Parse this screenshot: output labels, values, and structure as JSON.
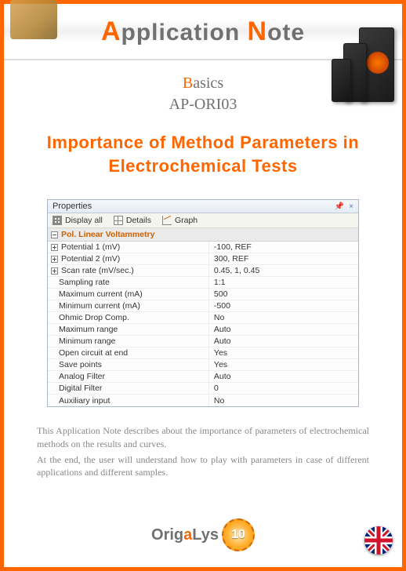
{
  "header": {
    "title_first_letter_1": "A",
    "title_rest_1": "pplication ",
    "title_first_letter_2": "N",
    "title_rest_2": "ote"
  },
  "subhead": {
    "line1_first": "B",
    "line1_rest": "asics",
    "line2": "AP-ORI03"
  },
  "main_title": "Importance of Method Parameters in Electrochemical Tests",
  "properties_panel": {
    "title": "Properties",
    "pin_icon": "📌",
    "close_icon": "×",
    "toolbar": {
      "display_all": "Display all",
      "details": "Details",
      "graph": "Graph"
    },
    "section_title": "Pol. Linear Voltammetry",
    "rows": [
      {
        "label": "Potential 1 (mV)",
        "value": "-100, REF",
        "expandable": true
      },
      {
        "label": "Potential 2 (mV)",
        "value": "300, REF",
        "expandable": true
      },
      {
        "label": "Scan rate (mV/sec.)",
        "value": "0.45, 1, 0.45",
        "expandable": true
      },
      {
        "label": "Sampling rate",
        "value": "1:1",
        "expandable": false
      },
      {
        "label": "Maximum current (mA)",
        "value": "500",
        "expandable": false
      },
      {
        "label": "Minimum current (mA)",
        "value": "-500",
        "expandable": false
      },
      {
        "label": "Ohmic Drop Comp.",
        "value": "No",
        "expandable": false
      },
      {
        "label": "Maximum range",
        "value": "Auto",
        "expandable": false
      },
      {
        "label": "Minimum range",
        "value": "Auto",
        "expandable": false
      },
      {
        "label": "Open circuit at end",
        "value": "Yes",
        "expandable": false
      },
      {
        "label": "Save points",
        "value": "Yes",
        "expandable": false
      },
      {
        "label": "Analog Filter",
        "value": "Auto",
        "expandable": false
      },
      {
        "label": "Digital Filter",
        "value": "0",
        "expandable": false
      },
      {
        "label": "Auxiliary input",
        "value": "No",
        "expandable": false
      }
    ]
  },
  "description": {
    "para1": "This Application Note describes about the importance of parameters of electrochemical methods on the results and curves.",
    "para2": "At the end, the user will understand how to play with parameters in case of different applications and different samples."
  },
  "footer": {
    "logo_part1": "Orig",
    "logo_part2": "a",
    "logo_part3": "Lys",
    "badge_text": "10"
  },
  "colors": {
    "accent": "#ff6600",
    "text_grey": "#707070",
    "panel_border": "#a9b7c9",
    "section_head_text": "#d06000",
    "desc_text": "#888888"
  }
}
